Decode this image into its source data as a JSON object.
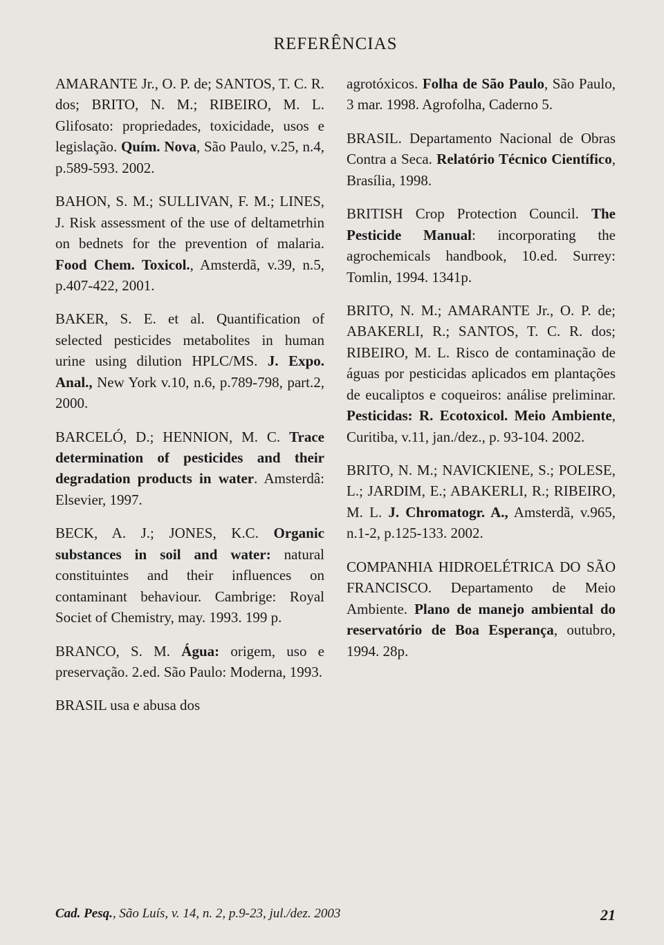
{
  "title": "REFERÊNCIAS",
  "references_left": [
    {
      "parts": [
        {
          "text": "AMARANTE Jr., O. P. de; SANTOS, T. C. R. dos; BRITO, N. M.; RIBEIRO, M. L. Glifosato: propriedades, toxicidade, usos e legislação. ",
          "bold": false
        },
        {
          "text": "Quím. Nova",
          "bold": true
        },
        {
          "text": ", São Paulo, v.25, n.4, p.589-593. 2002.",
          "bold": false
        }
      ]
    },
    {
      "parts": [
        {
          "text": "BAHON, S. M.; SULLIVAN, F. M.; LINES, J. Risk assessment of the use of deltametrhin on bednets for the prevention of malaria. ",
          "bold": false
        },
        {
          "text": "Food Chem. Toxicol.",
          "bold": true
        },
        {
          "text": ", Amsterdã, v.39, n.5, p.407-422, 2001.",
          "bold": false
        }
      ]
    },
    {
      "parts": [
        {
          "text": "BAKER, S. E. et al. Quantification of selected pesticides metabolites in human urine using dilution HPLC/MS. ",
          "bold": false
        },
        {
          "text": "J. Expo. Anal.,",
          "bold": true
        },
        {
          "text": " New York v.10, n.6, p.789-798, part.2, 2000.",
          "bold": false
        }
      ]
    },
    {
      "parts": [
        {
          "text": "BARCELÓ, D.; HENNION, M. C. ",
          "bold": false
        },
        {
          "text": "Trace determination of pesticides and their degradation products in water",
          "bold": true
        },
        {
          "text": ". Amsterdâ: Elsevier, 1997.",
          "bold": false
        }
      ]
    },
    {
      "parts": [
        {
          "text": "BECK, A. J.; JONES, K.C. ",
          "bold": false
        },
        {
          "text": "Organic substances in soil and water:",
          "bold": true
        },
        {
          "text": " natural constituintes and their influences on contaminant behaviour. Cambrige: Royal Societ of Chemistry, may. 1993. 199 p.",
          "bold": false
        }
      ]
    },
    {
      "parts": [
        {
          "text": "BRANCO, S. M. ",
          "bold": false
        },
        {
          "text": "Água:",
          "bold": true
        },
        {
          "text": " origem, uso e preservação. 2.ed. São Paulo: Moderna, 1993.",
          "bold": false
        }
      ]
    },
    {
      "parts": [
        {
          "text": "BRASIL usa e abusa dos",
          "bold": false
        }
      ]
    }
  ],
  "references_right": [
    {
      "parts": [
        {
          "text": "agrotóxicos. ",
          "bold": false
        },
        {
          "text": "Folha de São Paulo",
          "bold": true
        },
        {
          "text": ", São Paulo, 3 mar. 1998. Agrofolha, Caderno 5.",
          "bold": false
        }
      ]
    },
    {
      "parts": [
        {
          "text": "BRASIL. Departamento Nacional de Obras Contra a Seca. ",
          "bold": false
        },
        {
          "text": "Relatório Técnico Científico",
          "bold": true
        },
        {
          "text": ", Brasília, 1998.",
          "bold": false
        }
      ]
    },
    {
      "parts": [
        {
          "text": "BRITISH Crop Protection Council. ",
          "bold": false
        },
        {
          "text": "The Pesticide Manual",
          "bold": true
        },
        {
          "text": ": incorporating the agrochemicals handbook, 10.ed. Surrey: Tomlin, 1994. 1341p.",
          "bold": false
        }
      ]
    },
    {
      "parts": [
        {
          "text": "BRITO, N. M.; AMARANTE Jr., O. P. de; ABAKERLI, R.; SANTOS, T. C. R. dos; RIBEIRO, M. L. Risco de contaminação de águas por pesticidas aplicados em plantações de eucaliptos e coqueiros: análise preliminar. ",
          "bold": false
        },
        {
          "text": "Pesticidas: R. Ecotoxicol. Meio Ambiente",
          "bold": true
        },
        {
          "text": ", Curitiba, v.11, jan./dez., p. 93-104. 2002.",
          "bold": false
        }
      ]
    },
    {
      "parts": [
        {
          "text": "BRITO, N. M.; NAVICKIENE, S.; POLESE, L.; JARDIM, E.; ABAKERLI, R.; RIBEIRO, M. L. ",
          "bold": false
        },
        {
          "text": "J. Chromatogr. A.,",
          "bold": true
        },
        {
          "text": " Amsterdã, v.965, n.1-2, p.125-133. 2002.",
          "bold": false
        }
      ]
    },
    {
      "parts": [
        {
          "text": "COMPANHIA HIDROELÉTRICA DO SÃO FRANCISCO. Departamento de Meio Ambiente. ",
          "bold": false
        },
        {
          "text": "Plano de manejo ambiental do reservatório de Boa Esperança",
          "bold": true
        },
        {
          "text": ", outubro, 1994. 28p.",
          "bold": false
        }
      ]
    }
  ],
  "footer": {
    "journal_bold": "Cad. Pesq.",
    "journal_rest": ", São Luís, v. 14, n. 2, p.9-23, jul./dez. 2003",
    "page_number": "21"
  }
}
